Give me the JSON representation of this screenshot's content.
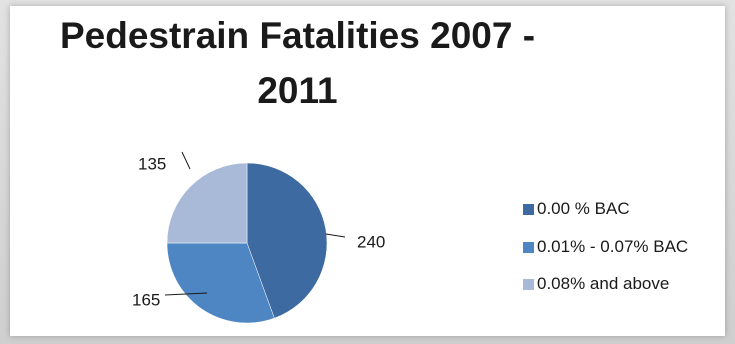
{
  "chart_data": {
    "type": "pie",
    "title": "Pedestrain Fatalities 2007 - 2011",
    "title_lines": [
      "Pedestrain Fatalities 2007 -",
      "2011"
    ],
    "categories": [
      "0.00 % BAC",
      "0.01% - 0.07% BAC",
      "0.08% and above"
    ],
    "values": [
      240,
      165,
      135
    ],
    "data_labels": [
      "240",
      "165",
      "135"
    ],
    "colors": [
      "#3d6aa1",
      "#4e86c4",
      "#a9b9d8"
    ],
    "legend_position": "right"
  }
}
